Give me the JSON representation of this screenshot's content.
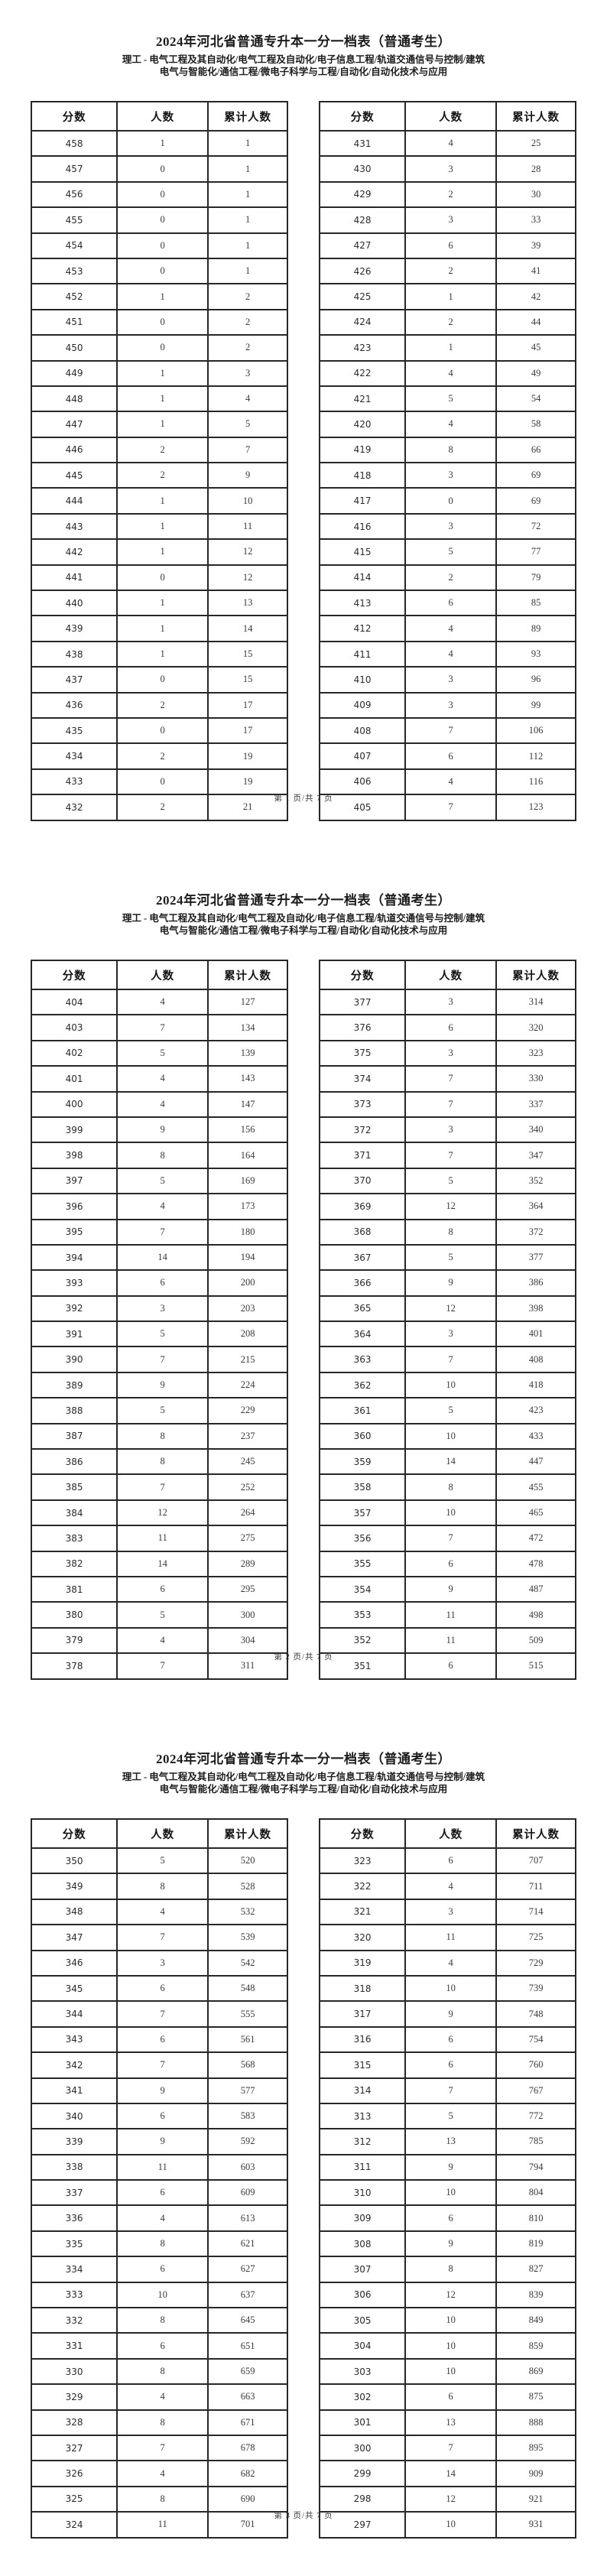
{
  "doc": {
    "title": "2024年河北省普通专升本一分一档表（普通考生）",
    "subtitle_line1": "理工 - 电气工程及其自动化/电气工程及自动化/电子信息工程/轨道交通信号与控制/建筑",
    "subtitle_line2": "电气与智能化/通信工程/微电子科学与工程/自动化/自动化技术与应用",
    "columns": [
      "分数",
      "人数",
      "累计人数"
    ],
    "text_color": "#222222",
    "border_color": "#272727",
    "pages": [
      {
        "footer": "第 1 页/共 7 页",
        "left_rows": [
          [
            458,
            1,
            1
          ],
          [
            457,
            0,
            1
          ],
          [
            456,
            0,
            1
          ],
          [
            455,
            0,
            1
          ],
          [
            454,
            0,
            1
          ],
          [
            453,
            0,
            1
          ],
          [
            452,
            1,
            2
          ],
          [
            451,
            0,
            2
          ],
          [
            450,
            0,
            2
          ],
          [
            449,
            1,
            3
          ],
          [
            448,
            1,
            4
          ],
          [
            447,
            1,
            5
          ],
          [
            446,
            2,
            7
          ],
          [
            445,
            2,
            9
          ],
          [
            444,
            1,
            10
          ],
          [
            443,
            1,
            11
          ],
          [
            442,
            1,
            12
          ],
          [
            441,
            0,
            12
          ],
          [
            440,
            1,
            13
          ],
          [
            439,
            1,
            14
          ],
          [
            438,
            1,
            15
          ],
          [
            437,
            0,
            15
          ],
          [
            436,
            2,
            17
          ],
          [
            435,
            0,
            17
          ],
          [
            434,
            2,
            19
          ],
          [
            433,
            0,
            19
          ],
          [
            432,
            2,
            21
          ]
        ],
        "right_rows": [
          [
            431,
            4,
            25
          ],
          [
            430,
            3,
            28
          ],
          [
            429,
            2,
            30
          ],
          [
            428,
            3,
            33
          ],
          [
            427,
            6,
            39
          ],
          [
            426,
            2,
            41
          ],
          [
            425,
            1,
            42
          ],
          [
            424,
            2,
            44
          ],
          [
            423,
            1,
            45
          ],
          [
            422,
            4,
            49
          ],
          [
            421,
            5,
            54
          ],
          [
            420,
            4,
            58
          ],
          [
            419,
            8,
            66
          ],
          [
            418,
            3,
            69
          ],
          [
            417,
            0,
            69
          ],
          [
            416,
            3,
            72
          ],
          [
            415,
            5,
            77
          ],
          [
            414,
            2,
            79
          ],
          [
            413,
            6,
            85
          ],
          [
            412,
            4,
            89
          ],
          [
            411,
            4,
            93
          ],
          [
            410,
            3,
            96
          ],
          [
            409,
            3,
            99
          ],
          [
            408,
            7,
            106
          ],
          [
            407,
            6,
            112
          ],
          [
            406,
            4,
            116
          ],
          [
            405,
            7,
            123
          ]
        ]
      },
      {
        "footer": "第 2 页/共 7 页",
        "left_rows": [
          [
            404,
            4,
            127
          ],
          [
            403,
            7,
            134
          ],
          [
            402,
            5,
            139
          ],
          [
            401,
            4,
            143
          ],
          [
            400,
            4,
            147
          ],
          [
            399,
            9,
            156
          ],
          [
            398,
            8,
            164
          ],
          [
            397,
            5,
            169
          ],
          [
            396,
            4,
            173
          ],
          [
            395,
            7,
            180
          ],
          [
            394,
            14,
            194
          ],
          [
            393,
            6,
            200
          ],
          [
            392,
            3,
            203
          ],
          [
            391,
            5,
            208
          ],
          [
            390,
            7,
            215
          ],
          [
            389,
            9,
            224
          ],
          [
            388,
            5,
            229
          ],
          [
            387,
            8,
            237
          ],
          [
            386,
            8,
            245
          ],
          [
            385,
            7,
            252
          ],
          [
            384,
            12,
            264
          ],
          [
            383,
            11,
            275
          ],
          [
            382,
            14,
            289
          ],
          [
            381,
            6,
            295
          ],
          [
            380,
            5,
            300
          ],
          [
            379,
            4,
            304
          ],
          [
            378,
            7,
            311
          ]
        ],
        "right_rows": [
          [
            377,
            3,
            314
          ],
          [
            376,
            6,
            320
          ],
          [
            375,
            3,
            323
          ],
          [
            374,
            7,
            330
          ],
          [
            373,
            7,
            337
          ],
          [
            372,
            3,
            340
          ],
          [
            371,
            7,
            347
          ],
          [
            370,
            5,
            352
          ],
          [
            369,
            12,
            364
          ],
          [
            368,
            8,
            372
          ],
          [
            367,
            5,
            377
          ],
          [
            366,
            9,
            386
          ],
          [
            365,
            12,
            398
          ],
          [
            364,
            3,
            401
          ],
          [
            363,
            7,
            408
          ],
          [
            362,
            10,
            418
          ],
          [
            361,
            5,
            423
          ],
          [
            360,
            10,
            433
          ],
          [
            359,
            14,
            447
          ],
          [
            358,
            8,
            455
          ],
          [
            357,
            10,
            465
          ],
          [
            356,
            7,
            472
          ],
          [
            355,
            6,
            478
          ],
          [
            354,
            9,
            487
          ],
          [
            353,
            11,
            498
          ],
          [
            352,
            11,
            509
          ],
          [
            351,
            6,
            515
          ]
        ]
      },
      {
        "footer": "第 3 页/共 7 页",
        "left_rows": [
          [
            350,
            5,
            520
          ],
          [
            349,
            8,
            528
          ],
          [
            348,
            4,
            532
          ],
          [
            347,
            7,
            539
          ],
          [
            346,
            3,
            542
          ],
          [
            345,
            6,
            548
          ],
          [
            344,
            7,
            555
          ],
          [
            343,
            6,
            561
          ],
          [
            342,
            7,
            568
          ],
          [
            341,
            9,
            577
          ],
          [
            340,
            6,
            583
          ],
          [
            339,
            9,
            592
          ],
          [
            338,
            11,
            603
          ],
          [
            337,
            6,
            609
          ],
          [
            336,
            4,
            613
          ],
          [
            335,
            8,
            621
          ],
          [
            334,
            6,
            627
          ],
          [
            333,
            10,
            637
          ],
          [
            332,
            8,
            645
          ],
          [
            331,
            6,
            651
          ],
          [
            330,
            8,
            659
          ],
          [
            329,
            4,
            663
          ],
          [
            328,
            8,
            671
          ],
          [
            327,
            7,
            678
          ],
          [
            326,
            4,
            682
          ],
          [
            325,
            8,
            690
          ],
          [
            324,
            11,
            701
          ]
        ],
        "right_rows": [
          [
            323,
            6,
            707
          ],
          [
            322,
            4,
            711
          ],
          [
            321,
            3,
            714
          ],
          [
            320,
            11,
            725
          ],
          [
            319,
            4,
            729
          ],
          [
            318,
            10,
            739
          ],
          [
            317,
            9,
            748
          ],
          [
            316,
            6,
            754
          ],
          [
            315,
            6,
            760
          ],
          [
            314,
            7,
            767
          ],
          [
            313,
            5,
            772
          ],
          [
            312,
            13,
            785
          ],
          [
            311,
            9,
            794
          ],
          [
            310,
            10,
            804
          ],
          [
            309,
            6,
            810
          ],
          [
            308,
            9,
            819
          ],
          [
            307,
            8,
            827
          ],
          [
            306,
            12,
            839
          ],
          [
            305,
            10,
            849
          ],
          [
            304,
            10,
            859
          ],
          [
            303,
            10,
            869
          ],
          [
            302,
            6,
            875
          ],
          [
            301,
            13,
            888
          ],
          [
            300,
            7,
            895
          ],
          [
            299,
            14,
            909
          ],
          [
            298,
            12,
            921
          ],
          [
            297,
            10,
            931
          ]
        ]
      }
    ]
  }
}
